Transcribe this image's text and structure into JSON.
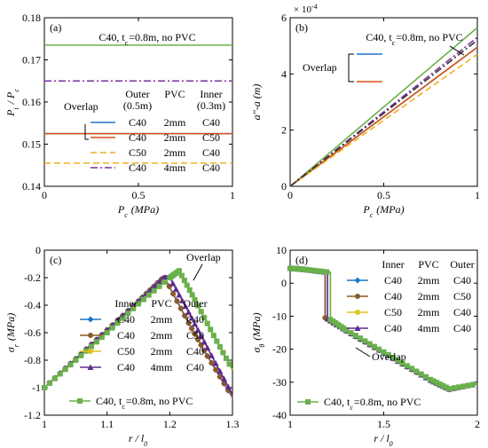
{
  "chart_data": [
    {
      "panel": "a",
      "type": "line",
      "panel_label": "(a)",
      "xlabel": "P_c (MPa)",
      "ylabel": "P_i / P_c",
      "xlim": [
        0,
        1
      ],
      "ylim": [
        0.14,
        0.18
      ],
      "xticks": [
        0,
        0.5,
        1
      ],
      "yticks": [
        0.14,
        0.15,
        0.16,
        0.17,
        0.18
      ],
      "grid": false,
      "annotation_top": "C40, t_c=0.8m, no PVC",
      "overlap_label": "Overlap",
      "legend_headers": [
        "Outer (0.5m)",
        "PVC",
        "Inner (0.3m)"
      ],
      "legend_placement": "center",
      "series": [
        {
          "name": "C40, t_c=0.8m, no PVC",
          "color": "#6ab04c",
          "dash": "solid",
          "x": [
            0,
            1
          ],
          "y": [
            0.1735,
            0.1735
          ]
        },
        {
          "name": "C40 4mm C40",
          "color": "#7b2fa0",
          "dash": "dashdot",
          "x": [
            0,
            1
          ],
          "y": [
            0.165,
            0.165
          ]
        },
        {
          "name": "C40 2mm C40",
          "color": "#1f77c4",
          "dash": "solid",
          "x": [
            0,
            1
          ],
          "y": [
            0.1525,
            0.1525
          ]
        },
        {
          "name": "C40 2mm C50",
          "color": "#d95319",
          "dash": "solid",
          "x": [
            0,
            1
          ],
          "y": [
            0.1525,
            0.1525
          ]
        },
        {
          "name": "C50 2mm C40",
          "color": "#edb120",
          "dash": "dashed",
          "x": [
            0,
            1
          ],
          "y": [
            0.1455,
            0.1455
          ]
        }
      ],
      "legend_rows": [
        {
          "outer": "C40",
          "pvc": "2mm",
          "inner": "C40",
          "color": "#1f77c4",
          "dash": "solid"
        },
        {
          "outer": "C40",
          "pvc": "2mm",
          "inner": "C50",
          "color": "#d95319",
          "dash": "solid"
        },
        {
          "outer": "C50",
          "pvc": "2mm",
          "inner": "C40",
          "color": "#edb120",
          "dash": "dashed"
        },
        {
          "outer": "C40",
          "pvc": "4mm",
          "inner": "C40",
          "color": "#7b2fa0",
          "dash": "dashdot"
        }
      ]
    },
    {
      "panel": "b",
      "type": "line",
      "panel_label": "(b)",
      "xlabel": "P_c (MPa)",
      "ylabel": "a''-a (m)",
      "y_multiplier": "× 10^-4",
      "xlim": [
        0,
        1
      ],
      "ylim": [
        0,
        6
      ],
      "xticks": [
        0,
        0.5,
        1
      ],
      "yticks": [
        0,
        2,
        4,
        6
      ],
      "grid": false,
      "annotation_top": "C40, t_c=0.8m, no PVC",
      "overlap_label": "Overlap",
      "series": [
        {
          "name": "C40, t_c=0.8m, no PVC",
          "color": "#6ab04c",
          "dash": "solid",
          "x": [
            0,
            1
          ],
          "y": [
            0,
            5.65
          ]
        },
        {
          "name": "C40 4mm C40",
          "color": "#7b2fa0",
          "dash": "dashdot",
          "x": [
            0,
            1
          ],
          "y": [
            0,
            5.3
          ]
        },
        {
          "name": "C40 2mm C40",
          "color": "#1f77c4",
          "dash": "solid",
          "x": [
            0,
            1
          ],
          "y": [
            0,
            4.95
          ]
        },
        {
          "name": "C40 2mm C50",
          "color": "#d95319",
          "dash": "solid",
          "x": [
            0,
            1
          ],
          "y": [
            0,
            4.95
          ]
        },
        {
          "name": "C50 2mm C40",
          "color": "#edb120",
          "dash": "dashed",
          "x": [
            0,
            1
          ],
          "y": [
            0,
            4.7
          ]
        },
        {
          "name": "",
          "color": "#333333",
          "dash": "dashdot",
          "x": [
            0,
            1
          ],
          "y": [
            0,
            5.2
          ]
        }
      ]
    },
    {
      "panel": "c",
      "type": "line",
      "panel_label": "(c)",
      "xlabel": "r / l_0",
      "ylabel": "σ_r (MPa)",
      "xlim": [
        1,
        1.3
      ],
      "ylim": [
        -1.2,
        0
      ],
      "xticks": [
        1,
        1.1,
        1.2,
        1.3
      ],
      "yticks": [
        -1.2,
        -1,
        -0.8,
        -0.6,
        -0.4,
        -0.2,
        0
      ],
      "grid": false,
      "overlap_label": "Overlap",
      "legend_headers": [
        "Inner",
        "PVC",
        "Outer"
      ],
      "legend_placement": "bottom-center",
      "series": [
        {
          "name": "C40 2mm C40",
          "color": "#1f77c4",
          "marker": "diamond",
          "x": [
            1,
            1.05,
            1.1,
            1.15,
            1.187,
            1.193,
            1.23,
            1.26,
            1.3
          ],
          "y": [
            -1.0,
            -0.79,
            -0.58,
            -0.37,
            -0.21,
            -0.21,
            -0.53,
            -0.77,
            -1.07
          ]
        },
        {
          "name": "C40 2mm C50",
          "color": "#8c5a2a",
          "marker": "circle",
          "x": [
            1,
            1.05,
            1.1,
            1.15,
            1.187,
            1.193,
            1.23,
            1.26,
            1.3
          ],
          "y": [
            -1.0,
            -0.79,
            -0.58,
            -0.37,
            -0.21,
            -0.21,
            -0.53,
            -0.77,
            -1.07
          ]
        },
        {
          "name": "C50 2mm C40",
          "color": "#e0c21a",
          "marker": "circle",
          "x": [
            1,
            1.05,
            1.1,
            1.15,
            1.2,
            1.215,
            1.24,
            1.27,
            1.3
          ],
          "y": [
            -1.0,
            -0.8,
            -0.6,
            -0.39,
            -0.2,
            -0.15,
            -0.36,
            -0.62,
            -0.87
          ]
        },
        {
          "name": "C40 4mm C40",
          "color": "#5b2c8e",
          "marker": "triangle",
          "x": [
            1,
            1.05,
            1.1,
            1.15,
            1.19,
            1.2,
            1.23,
            1.26,
            1.3
          ],
          "y": [
            -1.0,
            -0.79,
            -0.58,
            -0.37,
            -0.2,
            -0.2,
            -0.45,
            -0.71,
            -1.05
          ]
        },
        {
          "name": "C40, t_c=0.8m, no PVC",
          "color": "#6ab04c",
          "marker": "square",
          "x": [
            1,
            1.05,
            1.1,
            1.15,
            1.2,
            1.215,
            1.24,
            1.27,
            1.3
          ],
          "y": [
            -1.0,
            -0.8,
            -0.6,
            -0.39,
            -0.2,
            -0.15,
            -0.36,
            -0.62,
            -0.87
          ]
        }
      ],
      "legend_rows": [
        {
          "inner": "C40",
          "pvc": "2mm",
          "outer": "C40",
          "color": "#1f77c4",
          "marker": "diamond"
        },
        {
          "inner": "C40",
          "pvc": "2mm",
          "outer": "C50",
          "color": "#8c5a2a",
          "marker": "circle"
        },
        {
          "inner": "C50",
          "pvc": "2mm",
          "outer": "C40",
          "color": "#e0c21a",
          "marker": "circle"
        },
        {
          "inner": "C40",
          "pvc": "4mm",
          "outer": "C40",
          "color": "#5b2c8e",
          "marker": "triangle"
        }
      ],
      "legend_bottom": "C40, t_c=0.8m, no PVC"
    },
    {
      "panel": "d",
      "type": "line",
      "panel_label": "(d)",
      "xlabel": "r / l_0",
      "ylabel": "σ_θ (MPa)",
      "xlim": [
        1,
        2
      ],
      "ylim": [
        -40,
        10
      ],
      "xticks": [
        1,
        1.5,
        2
      ],
      "yticks": [
        -40,
        -30,
        -20,
        -10,
        0,
        10
      ],
      "grid": false,
      "overlap_label": "Overlap",
      "legend_headers": [
        "Inner",
        "PVC",
        "Outer"
      ],
      "legend_placement": "top-right",
      "series": [
        {
          "name": "C40 2mm C40",
          "color": "#1f77c4",
          "marker": "diamond",
          "x": [
            1,
            1.05,
            1.1,
            1.187,
            1.187,
            1.3,
            1.45,
            1.6,
            1.75,
            1.85,
            2.0
          ],
          "y": [
            4.5,
            4.3,
            4.0,
            3.3,
            -10.5,
            -14.5,
            -19.5,
            -24.5,
            -29.5,
            -32.2,
            -30.5
          ]
        },
        {
          "name": "C40 2mm C50",
          "color": "#8c5a2a",
          "marker": "circle",
          "x": [
            1,
            1.05,
            1.1,
            1.187,
            1.187,
            1.3,
            1.45,
            1.6,
            1.75,
            1.85,
            2.0
          ],
          "y": [
            4.5,
            4.3,
            4.0,
            3.3,
            -10.5,
            -14.5,
            -19.5,
            -24.5,
            -29.5,
            -32.2,
            -30.5
          ]
        },
        {
          "name": "C50 2mm C40",
          "color": "#e0c21a",
          "marker": "circle",
          "x": [
            1,
            1.05,
            1.1,
            1.215,
            1.215,
            1.3,
            1.45,
            1.6,
            1.75,
            1.85,
            2.0
          ],
          "y": [
            4.5,
            4.3,
            4.0,
            3.3,
            -11.0,
            -14.2,
            -19.2,
            -24.2,
            -29.2,
            -32.0,
            -30.5
          ]
        },
        {
          "name": "C40 4mm C40",
          "color": "#5b2c8e",
          "marker": "triangle",
          "x": [
            1,
            1.05,
            1.1,
            1.2,
            1.2,
            1.3,
            1.45,
            1.6,
            1.75,
            1.85,
            2.0
          ],
          "y": [
            4.5,
            4.3,
            4.0,
            3.3,
            -10.8,
            -14.4,
            -19.4,
            -24.4,
            -29.4,
            -32.1,
            -30.5
          ]
        },
        {
          "name": "C40, t_c=0.8m, no PVC",
          "color": "#6ab04c",
          "marker": "square",
          "x": [
            1,
            1.05,
            1.1,
            1.215,
            1.215,
            1.3,
            1.45,
            1.6,
            1.75,
            1.85,
            2.0
          ],
          "y": [
            4.5,
            4.3,
            4.0,
            3.3,
            -11.0,
            -14.2,
            -19.2,
            -24.2,
            -29.2,
            -32.0,
            -30.5
          ]
        }
      ],
      "legend_rows": [
        {
          "inner": "C40",
          "pvc": "2mm",
          "outer": "C40",
          "color": "#1f77c4",
          "marker": "diamond"
        },
        {
          "inner": "C40",
          "pvc": "2mm",
          "outer": "C50",
          "color": "#8c5a2a",
          "marker": "circle"
        },
        {
          "inner": "C50",
          "pvc": "2mm",
          "outer": "C40",
          "color": "#e0c21a",
          "marker": "circle"
        },
        {
          "inner": "C40",
          "pvc": "4mm",
          "outer": "C40",
          "color": "#5b2c8e",
          "marker": "triangle"
        }
      ],
      "legend_bottom": "C40, t_c=0.8m, no PVC"
    }
  ]
}
